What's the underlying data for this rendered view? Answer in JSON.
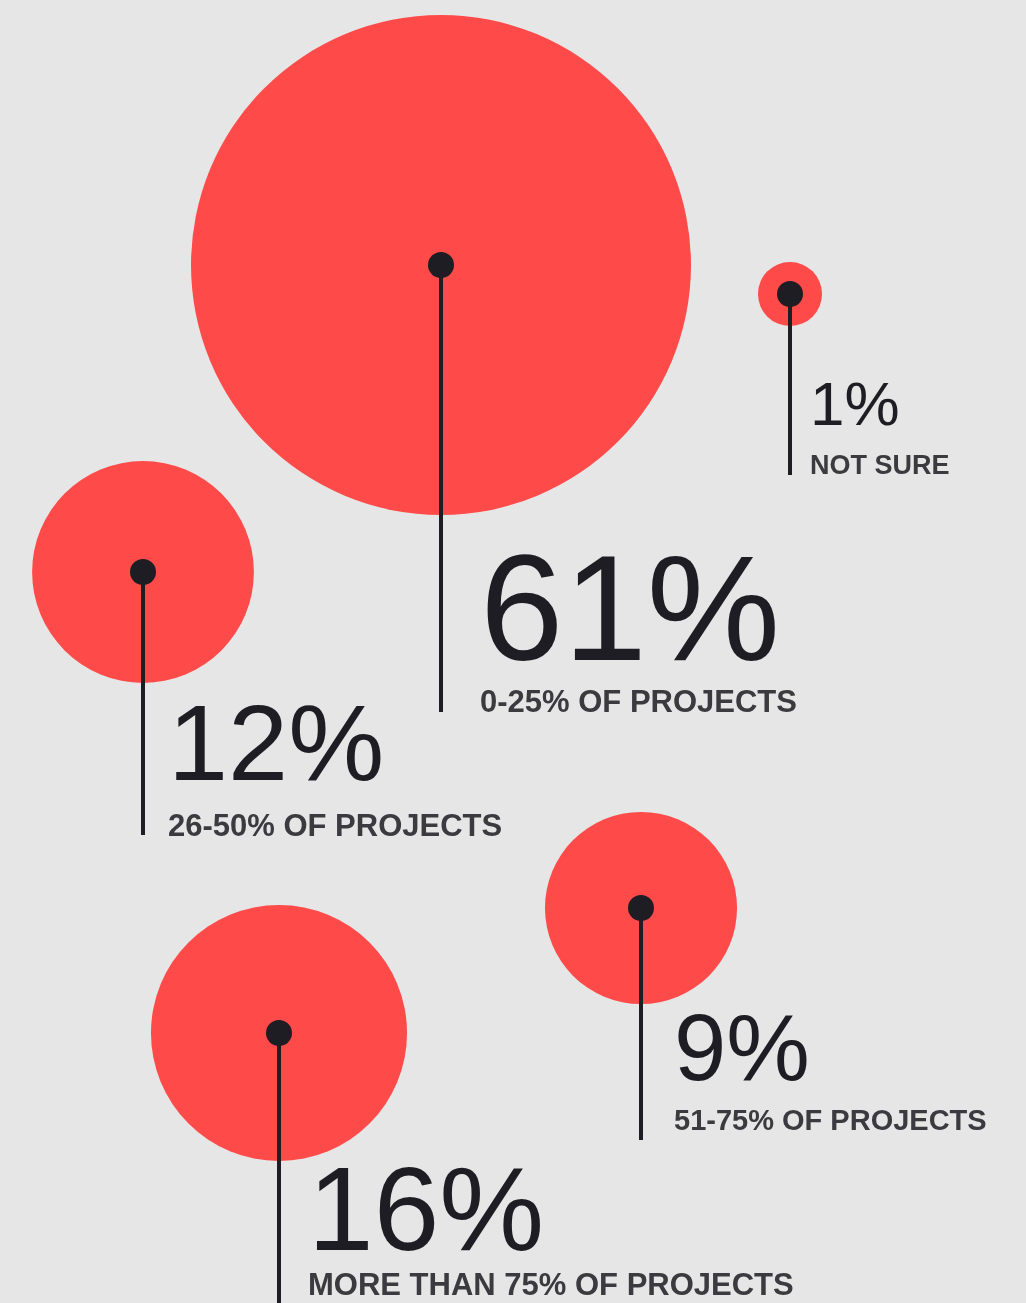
{
  "chart_data": {
    "type": "other",
    "categories": [
      "0-25% OF PROJECTS",
      "NOT SURE",
      "26-50% OF PROJECTS",
      "51-75% OF PROJECTS",
      "MORE THAN 75% OF PROJECTS"
    ],
    "values": [
      61,
      1,
      12,
      9,
      16
    ],
    "value_labels": [
      "61%",
      "1%",
      "12%",
      "9%",
      "16%"
    ],
    "color": "#ff4a4a"
  }
}
